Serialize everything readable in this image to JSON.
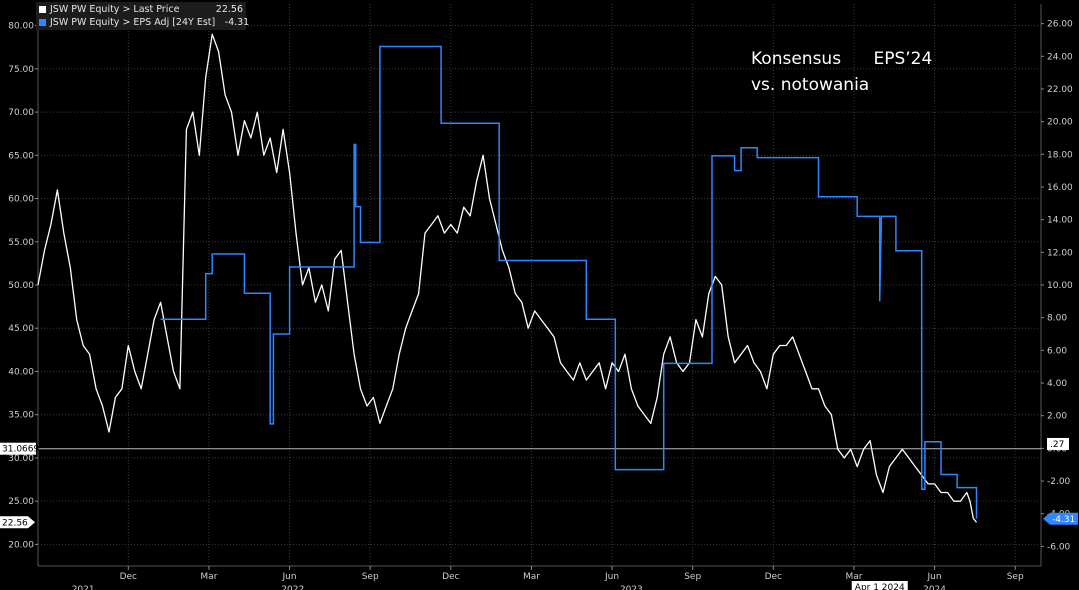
{
  "chart_data": {
    "type": "line",
    "title": "",
    "annotation": [
      "Konsensus      EPS’24",
      "vs. notowania"
    ],
    "legend": {
      "placement": "top-left",
      "entries": [
        {
          "label": "JSW PW Equity > Last Price",
          "value": "22.56",
          "color": "#ffffff"
        },
        {
          "label": "JSW PW Equity > EPS Adj [24Y Est]",
          "value": "-4.31",
          "color": "#2f86ff"
        }
      ]
    },
    "x_axis": {
      "month_ticks": [
        {
          "label": "Dec",
          "t": 2021.92
        },
        {
          "label": "Mar",
          "t": 2022.17
        },
        {
          "label": "Jun",
          "t": 2022.42
        },
        {
          "label": "Sep",
          "t": 2022.67
        },
        {
          "label": "Dec",
          "t": 2022.92
        },
        {
          "label": "Mar",
          "t": 2023.17
        },
        {
          "label": "Jun",
          "t": 2023.42
        },
        {
          "label": "Sep",
          "t": 2023.67
        },
        {
          "label": "Dec",
          "t": 2023.92
        },
        {
          "label": "Mar",
          "t": 2024.17
        },
        {
          "label": "Jun",
          "t": 2024.42
        },
        {
          "label": "Sep",
          "t": 2024.67
        }
      ],
      "year_labels": [
        {
          "label": "2021",
          "t": 2021.78
        },
        {
          "label": "2022",
          "t": 2022.43
        },
        {
          "label": "2023",
          "t": 2023.48
        },
        {
          "label": "2024",
          "t": 2024.42
        }
      ],
      "marker_label": {
        "label": "Apr 1 2024",
        "t": 2024.25
      },
      "range": [
        2021.64,
        2024.75
      ]
    },
    "y_left": {
      "ticks": [
        "20.00",
        "25.00",
        "30.00",
        "35.00",
        "40.00",
        "45.00",
        "50.00",
        "55.00",
        "60.00",
        "65.00",
        "70.00",
        "75.00",
        "80.00"
      ],
      "range": [
        17.5,
        82.5
      ],
      "current_label": "31.0669",
      "current_value": 31.0669
    },
    "y_right": {
      "ticks": [
        "-6.00",
        "-4.00",
        "-2.00",
        "0.00",
        "2.00",
        "4.00",
        "6.00",
        "8.00",
        "10.00",
        "12.00",
        "14.00",
        "16.00",
        "18.00",
        "20.00",
        "22.00",
        "24.00",
        "26.00"
      ],
      "range": [
        -7.2,
        27.2
      ],
      "current_label": ".27",
      "current_value": 0.27
    },
    "series": [
      {
        "name": "JSW PW Equity > Last Price",
        "axis": "left",
        "color": "#ffffff",
        "last_label": "22.56",
        "points": [
          [
            2021.64,
            50
          ],
          [
            2021.66,
            54
          ],
          [
            2021.68,
            57
          ],
          [
            2021.7,
            61
          ],
          [
            2021.72,
            56
          ],
          [
            2021.74,
            52
          ],
          [
            2021.76,
            46
          ],
          [
            2021.78,
            43
          ],
          [
            2021.8,
            42
          ],
          [
            2021.82,
            38
          ],
          [
            2021.84,
            36
          ],
          [
            2021.86,
            33
          ],
          [
            2021.88,
            37
          ],
          [
            2021.9,
            38
          ],
          [
            2021.92,
            43
          ],
          [
            2021.94,
            40
          ],
          [
            2021.96,
            38
          ],
          [
            2021.98,
            42
          ],
          [
            2022.0,
            46
          ],
          [
            2022.02,
            48
          ],
          [
            2022.04,
            44
          ],
          [
            2022.06,
            40
          ],
          [
            2022.08,
            38
          ],
          [
            2022.1,
            68
          ],
          [
            2022.12,
            70
          ],
          [
            2022.14,
            65
          ],
          [
            2022.16,
            74
          ],
          [
            2022.18,
            79
          ],
          [
            2022.2,
            77
          ],
          [
            2022.22,
            72
          ],
          [
            2022.24,
            70
          ],
          [
            2022.26,
            65
          ],
          [
            2022.28,
            69
          ],
          [
            2022.3,
            67
          ],
          [
            2022.32,
            70
          ],
          [
            2022.34,
            65
          ],
          [
            2022.36,
            67
          ],
          [
            2022.38,
            63
          ],
          [
            2022.4,
            68
          ],
          [
            2022.42,
            63
          ],
          [
            2022.44,
            56
          ],
          [
            2022.46,
            50
          ],
          [
            2022.48,
            52
          ],
          [
            2022.5,
            48
          ],
          [
            2022.52,
            50
          ],
          [
            2022.54,
            47
          ],
          [
            2022.56,
            53
          ],
          [
            2022.58,
            54
          ],
          [
            2022.6,
            48
          ],
          [
            2022.62,
            42
          ],
          [
            2022.64,
            38
          ],
          [
            2022.66,
            36
          ],
          [
            2022.68,
            37
          ],
          [
            2022.7,
            34
          ],
          [
            2022.72,
            36
          ],
          [
            2022.74,
            38
          ],
          [
            2022.76,
            42
          ],
          [
            2022.78,
            45
          ],
          [
            2022.8,
            47
          ],
          [
            2022.82,
            49
          ],
          [
            2022.84,
            56
          ],
          [
            2022.86,
            57
          ],
          [
            2022.88,
            58
          ],
          [
            2022.9,
            56
          ],
          [
            2022.92,
            57
          ],
          [
            2022.94,
            56
          ],
          [
            2022.96,
            59
          ],
          [
            2022.98,
            58
          ],
          [
            2023.0,
            62
          ],
          [
            2023.02,
            65
          ],
          [
            2023.04,
            60
          ],
          [
            2023.06,
            57
          ],
          [
            2023.08,
            54
          ],
          [
            2023.1,
            52
          ],
          [
            2023.12,
            49
          ],
          [
            2023.14,
            48
          ],
          [
            2023.16,
            45
          ],
          [
            2023.18,
            47
          ],
          [
            2023.2,
            46
          ],
          [
            2023.22,
            45
          ],
          [
            2023.24,
            44
          ],
          [
            2023.26,
            41
          ],
          [
            2023.28,
            40
          ],
          [
            2023.3,
            39
          ],
          [
            2023.32,
            41
          ],
          [
            2023.34,
            39
          ],
          [
            2023.36,
            40
          ],
          [
            2023.38,
            41
          ],
          [
            2023.4,
            38
          ],
          [
            2023.42,
            41
          ],
          [
            2023.44,
            40
          ],
          [
            2023.46,
            42
          ],
          [
            2023.48,
            38
          ],
          [
            2023.5,
            36
          ],
          [
            2023.52,
            35
          ],
          [
            2023.54,
            34
          ],
          [
            2023.56,
            37
          ],
          [
            2023.58,
            42
          ],
          [
            2023.6,
            44
          ],
          [
            2023.62,
            41
          ],
          [
            2023.64,
            40
          ],
          [
            2023.66,
            41
          ],
          [
            2023.68,
            46
          ],
          [
            2023.7,
            44
          ],
          [
            2023.72,
            49
          ],
          [
            2023.74,
            51
          ],
          [
            2023.76,
            50
          ],
          [
            2023.78,
            44
          ],
          [
            2023.8,
            41
          ],
          [
            2023.82,
            42
          ],
          [
            2023.84,
            43
          ],
          [
            2023.86,
            41
          ],
          [
            2023.88,
            40
          ],
          [
            2023.9,
            38
          ],
          [
            2023.92,
            42
          ],
          [
            2023.94,
            43
          ],
          [
            2023.96,
            43
          ],
          [
            2023.98,
            44
          ],
          [
            2024.0,
            42
          ],
          [
            2024.02,
            40
          ],
          [
            2024.04,
            38
          ],
          [
            2024.06,
            38
          ],
          [
            2024.08,
            36
          ],
          [
            2024.1,
            35
          ],
          [
            2024.12,
            31
          ],
          [
            2024.14,
            30
          ],
          [
            2024.16,
            31
          ],
          [
            2024.18,
            29
          ],
          [
            2024.2,
            31
          ],
          [
            2024.22,
            32
          ],
          [
            2024.24,
            28
          ],
          [
            2024.26,
            26
          ],
          [
            2024.28,
            29
          ],
          [
            2024.3,
            30
          ],
          [
            2024.32,
            31
          ],
          [
            2024.34,
            30
          ],
          [
            2024.36,
            29
          ],
          [
            2024.38,
            28
          ],
          [
            2024.4,
            27
          ],
          [
            2024.42,
            27
          ],
          [
            2024.44,
            26
          ],
          [
            2024.46,
            26
          ],
          [
            2024.48,
            25
          ],
          [
            2024.5,
            25
          ],
          [
            2024.52,
            26
          ],
          [
            2024.53,
            25
          ],
          [
            2024.54,
            23
          ],
          [
            2024.55,
            22.56
          ]
        ]
      },
      {
        "name": "JSW PW Equity > EPS Adj [24Y Est]",
        "axis": "right",
        "color": "#2f86ff",
        "last_label": "-4.31",
        "step_points": [
          [
            2022.02,
            7.9
          ],
          [
            2022.16,
            7.9
          ],
          [
            2022.16,
            10.7
          ],
          [
            2022.18,
            10.7
          ],
          [
            2022.18,
            11.9
          ],
          [
            2022.28,
            11.9
          ],
          [
            2022.28,
            9.5
          ],
          [
            2022.36,
            9.5
          ],
          [
            2022.36,
            1.5
          ],
          [
            2022.37,
            1.5
          ],
          [
            2022.37,
            7.0
          ],
          [
            2022.42,
            7.0
          ],
          [
            2022.42,
            11.1
          ],
          [
            2022.62,
            11.1
          ],
          [
            2022.62,
            18.6
          ],
          [
            2022.625,
            18.6
          ],
          [
            2022.625,
            14.8
          ],
          [
            2022.64,
            14.8
          ],
          [
            2022.64,
            12.6
          ],
          [
            2022.7,
            12.6
          ],
          [
            2022.7,
            24.6
          ],
          [
            2022.89,
            24.6
          ],
          [
            2022.89,
            19.9
          ],
          [
            2023.07,
            19.9
          ],
          [
            2023.07,
            11.5
          ],
          [
            2023.34,
            11.5
          ],
          [
            2023.34,
            7.9
          ],
          [
            2023.43,
            7.9
          ],
          [
            2023.43,
            -1.3
          ],
          [
            2023.58,
            -1.3
          ],
          [
            2023.58,
            5.2
          ],
          [
            2023.73,
            5.2
          ],
          [
            2023.73,
            17.9
          ],
          [
            2023.8,
            17.9
          ],
          [
            2023.8,
            17.0
          ],
          [
            2023.82,
            17.0
          ],
          [
            2023.82,
            18.4
          ],
          [
            2023.87,
            18.4
          ],
          [
            2023.87,
            17.8
          ],
          [
            2024.06,
            17.8
          ],
          [
            2024.06,
            15.4
          ],
          [
            2024.18,
            15.4
          ],
          [
            2024.18,
            14.2
          ],
          [
            2024.25,
            14.2
          ],
          [
            2024.25,
            9.0
          ],
          [
            2024.255,
            14.2
          ],
          [
            2024.3,
            14.2
          ],
          [
            2024.3,
            12.1
          ],
          [
            2024.38,
            12.1
          ],
          [
            2024.38,
            -2.5
          ],
          [
            2024.39,
            -2.5
          ],
          [
            2024.39,
            0.4
          ],
          [
            2024.44,
            0.4
          ],
          [
            2024.44,
            -1.6
          ],
          [
            2024.49,
            -1.6
          ],
          [
            2024.49,
            -2.4
          ],
          [
            2024.55,
            -2.4
          ],
          [
            2024.55,
            -4.31
          ]
        ]
      }
    ]
  }
}
